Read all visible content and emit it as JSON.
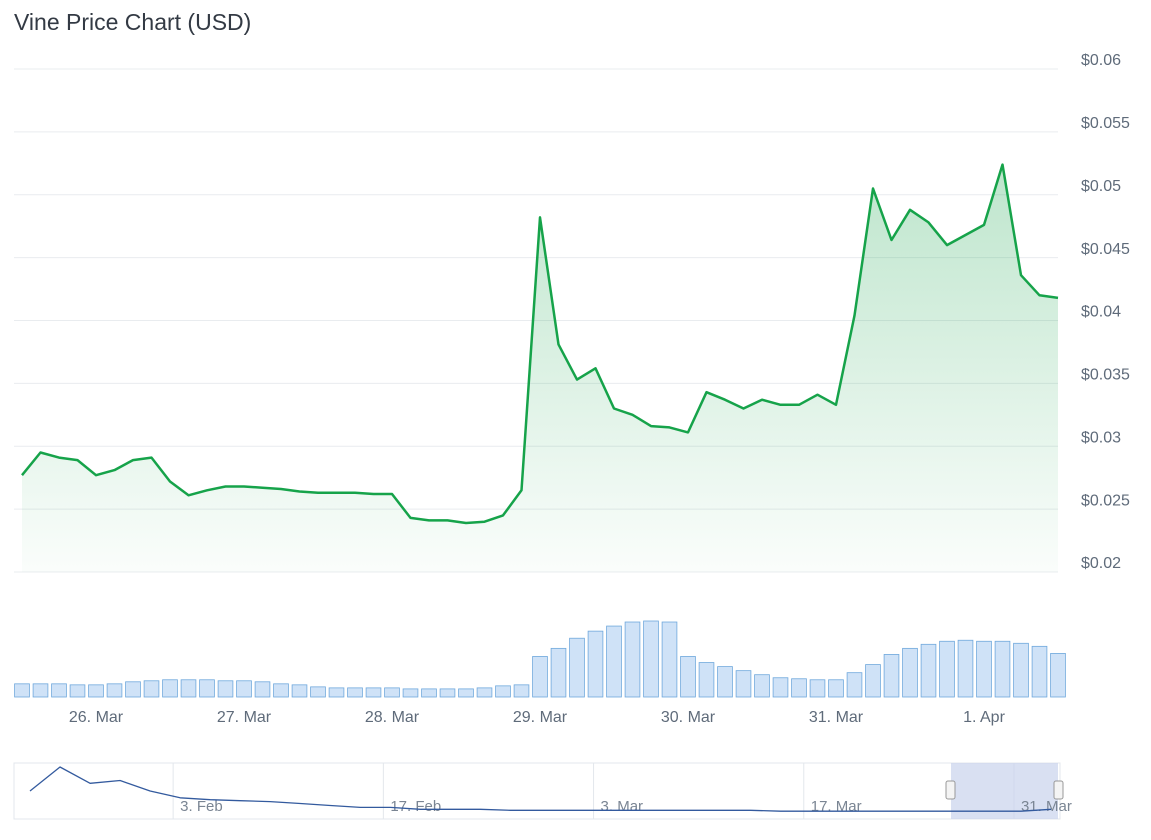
{
  "chart_data": [
    {
      "type": "line",
      "title": "Vine Price Chart (USD)",
      "categories": [
        null,
        null,
        null,
        null,
        "26. Mar",
        null,
        null,
        null,
        null,
        null,
        null,
        null,
        "27. Mar",
        null,
        null,
        null,
        null,
        null,
        null,
        null,
        "28. Mar",
        null,
        null,
        null,
        null,
        null,
        null,
        null,
        "29. Mar",
        null,
        null,
        null,
        null,
        null,
        null,
        null,
        "30. Mar",
        null,
        null,
        null,
        null,
        null,
        null,
        null,
        "31. Mar",
        null,
        null,
        null,
        null,
        null,
        null,
        null,
        "1. Apr",
        null,
        null,
        null,
        null
      ],
      "values": [
        0.0277,
        0.0295,
        0.0291,
        0.0289,
        0.0277,
        0.0281,
        0.0289,
        0.0291,
        0.0272,
        0.0261,
        0.0265,
        0.0268,
        0.0268,
        0.0267,
        0.0266,
        0.0264,
        0.0263,
        0.0263,
        0.0263,
        0.0262,
        0.0262,
        0.0243,
        0.0241,
        0.0241,
        0.0239,
        0.024,
        0.0245,
        0.0265,
        0.0482,
        0.0381,
        0.0353,
        0.0362,
        0.033,
        0.0325,
        0.0316,
        0.0315,
        0.0311,
        0.0343,
        0.0337,
        0.033,
        0.0337,
        0.0333,
        0.0333,
        0.0341,
        0.0333,
        0.0404,
        0.0505,
        0.0464,
        0.0488,
        0.0478,
        0.046,
        0.0468,
        0.0476,
        0.0524,
        0.0436,
        0.042,
        0.0418
      ],
      "color": "#16a34a",
      "ylim": [
        0.02,
        0.06
      ],
      "yticks": [
        {
          "value": 0.02,
          "label": "$0.02"
        },
        {
          "value": 0.025,
          "label": "$0.025"
        },
        {
          "value": 0.03,
          "label": "$0.03"
        },
        {
          "value": 0.035,
          "label": "$0.035"
        },
        {
          "value": 0.04,
          "label": "$0.04"
        },
        {
          "value": 0.045,
          "label": "$0.045"
        },
        {
          "value": 0.05,
          "label": "$0.05"
        },
        {
          "value": 0.055,
          "label": "$0.055"
        },
        {
          "value": 0.06,
          "label": "$0.06"
        }
      ],
      "grid": true
    },
    {
      "type": "bar",
      "values": [
        13,
        13,
        13,
        12,
        12,
        13,
        15,
        16,
        17,
        17,
        17,
        16,
        16,
        15,
        13,
        12,
        10,
        9,
        9,
        9,
        9,
        8,
        8,
        8,
        8,
        9,
        11,
        12,
        40,
        48,
        58,
        65,
        70,
        74,
        75,
        74,
        40,
        34,
        30,
        26,
        22,
        19,
        18,
        17,
        17,
        24,
        32,
        42,
        48,
        52,
        55,
        56,
        55,
        55,
        53,
        50,
        43
      ],
      "color": "#6fa8dc"
    },
    {
      "type": "line",
      "categories": [
        null,
        null,
        null,
        null,
        null,
        "3. Feb",
        null,
        null,
        null,
        null,
        null,
        null,
        "17. Feb",
        null,
        null,
        null,
        null,
        null,
        null,
        "3. Mar",
        null,
        null,
        null,
        null,
        null,
        null,
        "17. Mar",
        null,
        null,
        null,
        null,
        null,
        null,
        "31. Mar",
        null
      ],
      "values": [
        27,
        52,
        35,
        38,
        27,
        20,
        18,
        17,
        16,
        14,
        12,
        10,
        10,
        8,
        8,
        8,
        7,
        7,
        7,
        7,
        7,
        7,
        7,
        7,
        7,
        6,
        6,
        6,
        6,
        6,
        6,
        6,
        6,
        6,
        8
      ],
      "color": "#335a9e"
    }
  ]
}
